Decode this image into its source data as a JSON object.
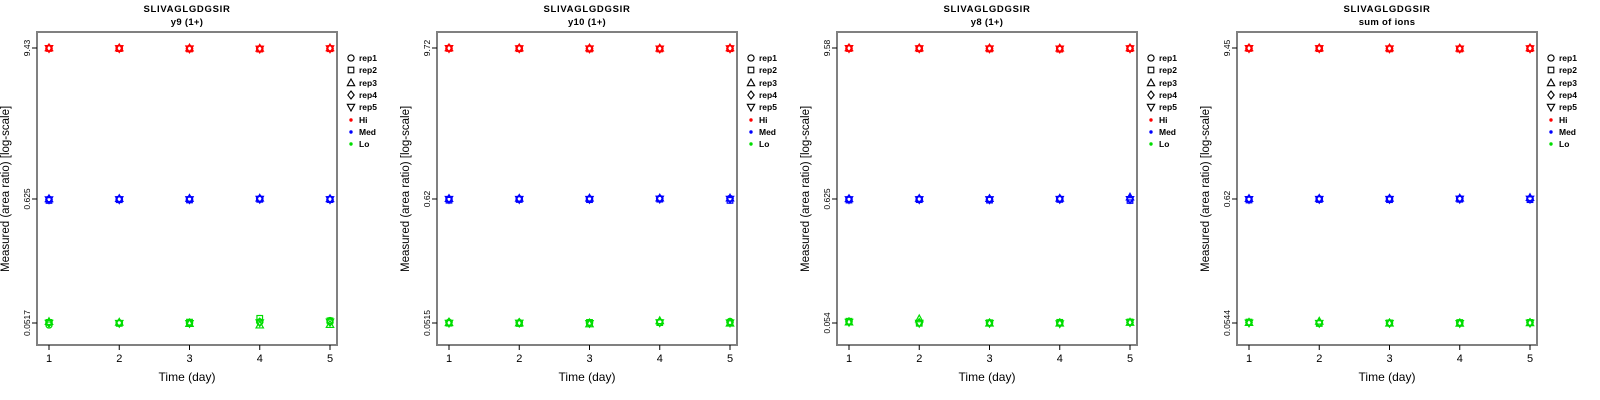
{
  "figure": {
    "ylabel": "Measured (area ratio) [log-scale]",
    "xlabel": "Time (day)",
    "legend": {
      "reps": [
        {
          "label": "rep1",
          "symbol": "circle"
        },
        {
          "label": "rep2",
          "symbol": "square"
        },
        {
          "label": "rep3",
          "symbol": "triangle-up"
        },
        {
          "label": "rep4",
          "symbol": "diamond"
        },
        {
          "label": "rep5",
          "symbol": "triangle-down"
        }
      ],
      "levels": [
        {
          "label": "Hi",
          "color": "#FF0000"
        },
        {
          "label": "Med",
          "color": "#0000FF"
        },
        {
          "label": "Lo",
          "color": "#00DD00"
        }
      ]
    }
  },
  "chart_data": [
    {
      "type": "scatter",
      "title": "SLIVAGLGDGSIR",
      "subtitle": "y9 (1+)",
      "xlabel": "Time (day)",
      "ylabel": "Measured (area ratio) [log-scale]",
      "x": [
        1,
        2,
        3,
        4,
        5
      ],
      "x_tick_labels": [
        "1",
        "2",
        "3",
        "4",
        "5"
      ],
      "y_scale": "log",
      "yticks": [
        {
          "label": "9.43",
          "value": 9.43
        },
        {
          "label": "0.625",
          "value": 0.625
        },
        {
          "label": "0.0517",
          "value": 0.0517
        }
      ],
      "series": [
        {
          "name": "Hi",
          "color": "#FF0000",
          "values_by_day": [
            [
              9.4,
              9.35,
              9.43,
              9.39,
              9.38
            ],
            [
              9.38,
              9.33,
              9.42,
              9.37,
              9.36
            ],
            [
              9.33,
              9.27,
              9.4,
              9.34,
              9.31
            ],
            [
              9.3,
              9.25,
              9.36,
              9.31,
              9.28
            ],
            [
              9.36,
              9.31,
              9.43,
              9.35,
              9.33
            ]
          ]
        },
        {
          "name": "Med",
          "color": "#0000FF",
          "values_by_day": [
            [
              0.62,
              0.607,
              0.626,
              0.622,
              0.618
            ],
            [
              0.623,
              0.616,
              0.628,
              0.621,
              0.619
            ],
            [
              0.622,
              0.613,
              0.63,
              0.623,
              0.62
            ],
            [
              0.627,
              0.621,
              0.632,
              0.626,
              0.624
            ],
            [
              0.623,
              0.617,
              0.627,
              0.621,
              0.62
            ]
          ]
        },
        {
          "name": "Lo",
          "color": "#00DD00",
          "values_by_day": [
            [
              0.0497,
              0.0523,
              0.053,
              0.0519,
              0.0516
            ],
            [
              0.0517,
              0.0513,
              0.0523,
              0.0518,
              0.0515
            ],
            [
              0.0516,
              0.0526,
              0.051,
              0.0518,
              0.0514
            ],
            [
              0.0528,
              0.0568,
              0.0494,
              0.0526,
              0.0522
            ],
            [
              0.0543,
              0.054,
              0.0499,
              0.0526,
              0.0529
            ]
          ]
        }
      ]
    },
    {
      "type": "scatter",
      "title": "SLIVAGLGDGSIR",
      "subtitle": "y10 (1+)",
      "xlabel": "Time (day)",
      "ylabel": "Measured (area ratio) [log-scale]",
      "x": [
        1,
        2,
        3,
        4,
        5
      ],
      "x_tick_labels": [
        "1",
        "2",
        "3",
        "4",
        "5"
      ],
      "y_scale": "log",
      "yticks": [
        {
          "label": "9.72",
          "value": 9.72
        },
        {
          "label": "0.62",
          "value": 0.62
        },
        {
          "label": "0.0515",
          "value": 0.0515
        }
      ],
      "series": [
        {
          "name": "Hi",
          "color": "#FF0000",
          "values_by_day": [
            [
              9.7,
              9.64,
              9.72,
              9.68,
              9.66
            ],
            [
              9.66,
              9.6,
              9.71,
              9.65,
              9.63
            ],
            [
              9.62,
              9.55,
              9.7,
              9.63,
              9.6
            ],
            [
              9.6,
              9.55,
              9.67,
              9.61,
              9.58
            ],
            [
              9.65,
              9.6,
              9.72,
              9.64,
              9.62
            ]
          ]
        },
        {
          "name": "Med",
          "color": "#0000FF",
          "values_by_day": [
            [
              0.618,
              0.605,
              0.623,
              0.62,
              0.617
            ],
            [
              0.621,
              0.614,
              0.626,
              0.619,
              0.617
            ],
            [
              0.62,
              0.612,
              0.628,
              0.621,
              0.618
            ],
            [
              0.624,
              0.618,
              0.629,
              0.623,
              0.621
            ],
            [
              0.625,
              0.603,
              0.629,
              0.622,
              0.619
            ]
          ]
        },
        {
          "name": "Lo",
          "color": "#00DD00",
          "values_by_day": [
            [
              0.0521,
              0.0513,
              0.0517,
              0.0524,
              0.0515
            ],
            [
              0.0517,
              0.051,
              0.0514,
              0.052,
              0.0516
            ],
            [
              0.0517,
              0.0521,
              0.0504,
              0.0515,
              0.0512
            ],
            [
              0.0521,
              0.0519,
              0.0537,
              0.0523,
              0.052
            ],
            [
              0.0531,
              0.0517,
              0.0512,
              0.0521,
              0.0518
            ]
          ]
        }
      ]
    },
    {
      "type": "scatter",
      "title": "SLIVAGLGDGSIR",
      "subtitle": "y8 (1+)",
      "xlabel": "Time (day)",
      "ylabel": "Measured (area ratio) [log-scale]",
      "x": [
        1,
        2,
        3,
        4,
        5
      ],
      "x_tick_labels": [
        "1",
        "2",
        "3",
        "4",
        "5"
      ],
      "y_scale": "log",
      "yticks": [
        {
          "label": "9.58",
          "value": 9.58
        },
        {
          "label": "0.625",
          "value": 0.625
        },
        {
          "label": "0.054",
          "value": 0.054
        }
      ],
      "series": [
        {
          "name": "Hi",
          "color": "#FF0000",
          "values_by_day": [
            [
              9.55,
              9.49,
              9.58,
              9.54,
              9.52
            ],
            [
              9.52,
              9.46,
              9.57,
              9.51,
              9.49
            ],
            [
              9.49,
              9.42,
              9.56,
              9.5,
              9.47
            ],
            [
              9.46,
              9.38,
              9.53,
              9.47,
              9.44
            ],
            [
              9.52,
              9.47,
              9.58,
              9.51,
              9.49
            ]
          ]
        },
        {
          "name": "Med",
          "color": "#0000FF",
          "values_by_day": [
            [
              0.622,
              0.612,
              0.627,
              0.623,
              0.62
            ],
            [
              0.624,
              0.617,
              0.629,
              0.622,
              0.62
            ],
            [
              0.621,
              0.611,
              0.628,
              0.622,
              0.619
            ],
            [
              0.626,
              0.62,
              0.631,
              0.625,
              0.623
            ],
            [
              0.624,
              0.607,
              0.645,
              0.623,
              0.621
            ]
          ]
        },
        {
          "name": "Lo",
          "color": "#00DD00",
          "values_by_day": [
            [
              0.0554,
              0.0559,
              0.0548,
              0.0552,
              0.055
            ],
            [
              0.0541,
              0.0537,
              0.0584,
              0.0544,
              0.0539
            ],
            [
              0.054,
              0.0543,
              0.0536,
              0.0541,
              0.0538
            ],
            [
              0.0541,
              0.0547,
              0.0536,
              0.0542,
              0.0534
            ],
            [
              0.0549,
              0.0551,
              0.0544,
              0.0547,
              0.0546
            ]
          ]
        }
      ]
    },
    {
      "type": "scatter",
      "title": "SLIVAGLGDGSIR",
      "subtitle": "sum of ions",
      "xlabel": "Time (day)",
      "ylabel": "Measured (area ratio) [log-scale]",
      "x": [
        1,
        2,
        3,
        4,
        5
      ],
      "x_tick_labels": [
        "1",
        "2",
        "3",
        "4",
        "5"
      ],
      "y_scale": "log",
      "yticks": [
        {
          "label": "9.45",
          "value": 9.45
        },
        {
          "label": "0.62",
          "value": 0.62
        },
        {
          "label": "0.0544",
          "value": 0.0544
        }
      ],
      "series": [
        {
          "name": "Hi",
          "color": "#FF0000",
          "values_by_day": [
            [
              9.42,
              9.37,
              9.45,
              9.41,
              9.39
            ],
            [
              9.4,
              9.34,
              9.44,
              9.39,
              9.37
            ],
            [
              9.36,
              9.3,
              9.43,
              9.37,
              9.34
            ],
            [
              9.34,
              9.28,
              9.4,
              9.35,
              9.32
            ],
            [
              9.39,
              9.34,
              9.45,
              9.38,
              9.36
            ]
          ]
        },
        {
          "name": "Med",
          "color": "#0000FF",
          "values_by_day": [
            [
              0.618,
              0.608,
              0.623,
              0.619,
              0.616
            ],
            [
              0.621,
              0.614,
              0.625,
              0.62,
              0.618
            ],
            [
              0.62,
              0.612,
              0.626,
              0.621,
              0.618
            ],
            [
              0.623,
              0.617,
              0.628,
              0.622,
              0.62
            ],
            [
              0.622,
              0.612,
              0.634,
              0.623,
              0.62
            ]
          ]
        },
        {
          "name": "Lo",
          "color": "#00DD00",
          "values_by_day": [
            [
              0.0549,
              0.0554,
              0.0547,
              0.055,
              0.0546
            ],
            [
              0.0545,
              0.0539,
              0.0561,
              0.0546,
              0.0542
            ],
            [
              0.0543,
              0.0545,
              0.0541,
              0.0544,
              0.0542
            ],
            [
              0.0544,
              0.0549,
              0.0539,
              0.0545,
              0.0541
            ],
            [
              0.0547,
              0.055,
              0.0544,
              0.0548,
              0.0545
            ]
          ]
        }
      ]
    }
  ]
}
